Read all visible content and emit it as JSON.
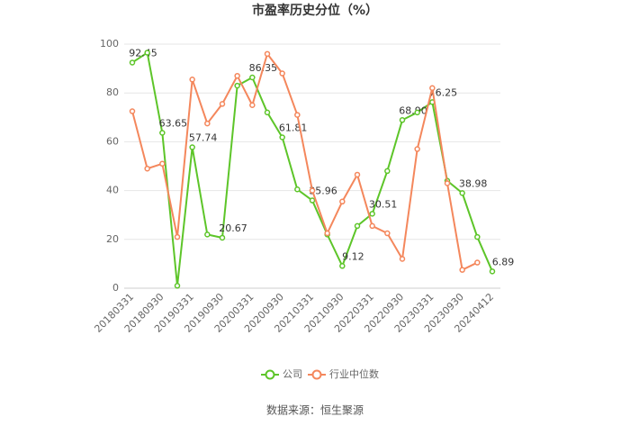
{
  "chart_data": {
    "type": "line",
    "title": "市盈率历史分位（%）",
    "categories": [
      "20180331",
      null,
      "20180930",
      null,
      "20190331",
      null,
      "20190930",
      null,
      "20200331",
      null,
      "20200930",
      null,
      "20210331",
      null,
      "20210930",
      null,
      "20220331",
      null,
      "20220930",
      null,
      "20230331",
      null,
      "20230930",
      null,
      "20240412"
    ],
    "series": [
      {
        "name": "公司",
        "color": "#5dc529",
        "values": [
          92.45,
          96.5,
          63.65,
          1,
          57.74,
          22,
          20.67,
          83,
          86.35,
          72,
          61.81,
          40.5,
          35.96,
          22,
          9.12,
          25.5,
          30.51,
          48,
          68.9,
          72,
          76.25,
          44,
          38.98,
          21,
          6.89
        ],
        "value_labels": [
          "92.45",
          null,
          "63.65",
          null,
          "57.74",
          null,
          "20.67",
          null,
          "86.35",
          null,
          "61.81",
          null,
          "35.96",
          null,
          "9.12",
          null,
          "30.51",
          null,
          "68.90",
          null,
          "76.25",
          null,
          "38.98",
          null,
          "6.89"
        ]
      },
      {
        "name": "行业中位数",
        "color": "#f4875c",
        "values": [
          72.5,
          49,
          51,
          21,
          85.5,
          67.5,
          75.5,
          87,
          75,
          96,
          88,
          71,
          40,
          22.5,
          35.5,
          46.5,
          25.5,
          22.5,
          12,
          57,
          82,
          43,
          7.5,
          10.5,
          null
        ]
      }
    ],
    "ylim": [
      0,
      100
    ],
    "yticks": [
      0,
      20,
      40,
      60,
      80,
      100
    ],
    "grid": true,
    "legend": "bottom",
    "source": "数据来源：恒生聚源"
  }
}
